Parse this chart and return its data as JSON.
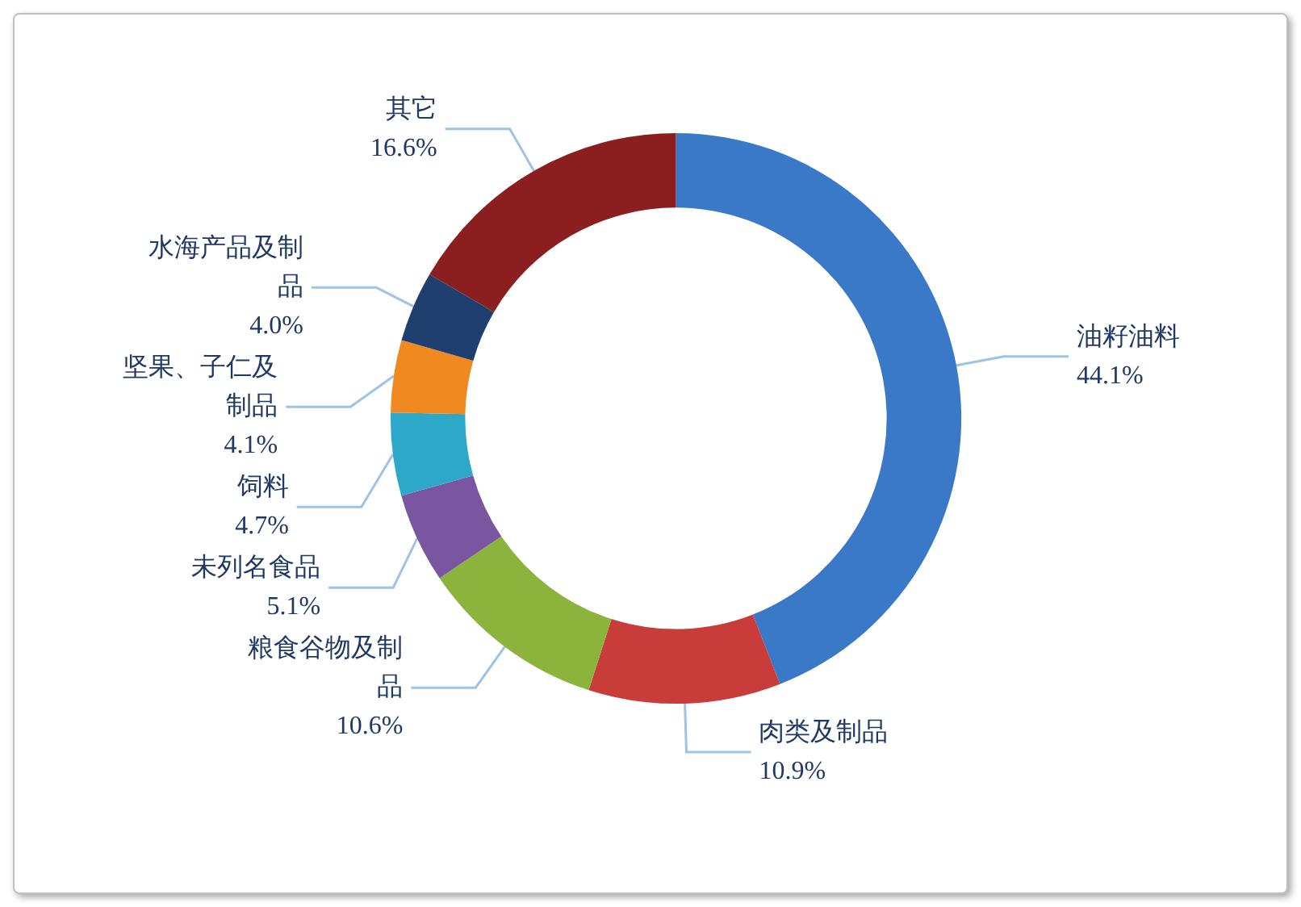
{
  "chart_data": {
    "type": "donut",
    "categories": [
      "油籽油料",
      "肉类及制品",
      "粮食谷物及制品",
      "未列名食品",
      "饲料",
      "坚果、子仁及制品",
      "水海产品及制品",
      "其它"
    ],
    "values": [
      44.1,
      10.9,
      10.6,
      5.1,
      4.7,
      4.1,
      4.0,
      16.6
    ],
    "colors": [
      "#3a78c8",
      "#c83c3a",
      "#8cb43c",
      "#7a55a0",
      "#2ea8c8",
      "#f08a20",
      "#1f3f6e",
      "#8b1e1e"
    ],
    "value_labels": [
      "44.1%",
      "10.9%",
      "10.6%",
      "5.1%",
      "4.7%",
      "4.1%",
      "4.0%",
      "16.6%"
    ],
    "legend": false
  }
}
